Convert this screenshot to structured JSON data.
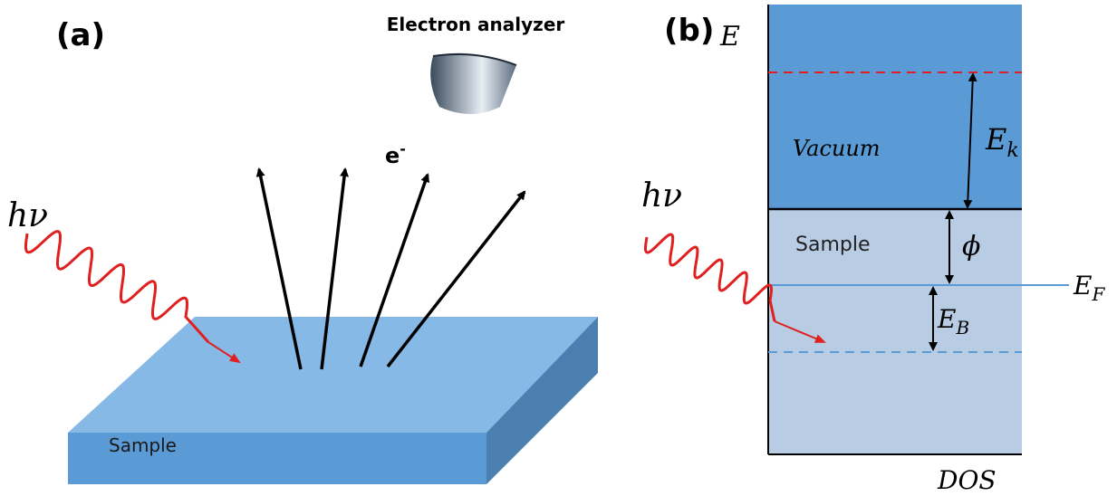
{
  "panel_a": {
    "label": "(a)",
    "analyzer_label": "Electron analyzer",
    "electron": {
      "symbol": "e",
      "superscript": "-"
    },
    "photon": "hν",
    "sample_label": "Sample"
  },
  "panel_b": {
    "label": "(b)",
    "energy_axis": "E",
    "vacuum_label": "Vacuum",
    "kinetic_energy": {
      "symbol": "E",
      "subscript": "k"
    },
    "sample_label": "Sample",
    "work_function": "ϕ",
    "fermi_level": {
      "symbol": "E",
      "subscript": "F"
    },
    "binding_energy": {
      "symbol": "E",
      "subscript": "B"
    },
    "photon": "hν",
    "dos_axis": "DOS"
  }
}
